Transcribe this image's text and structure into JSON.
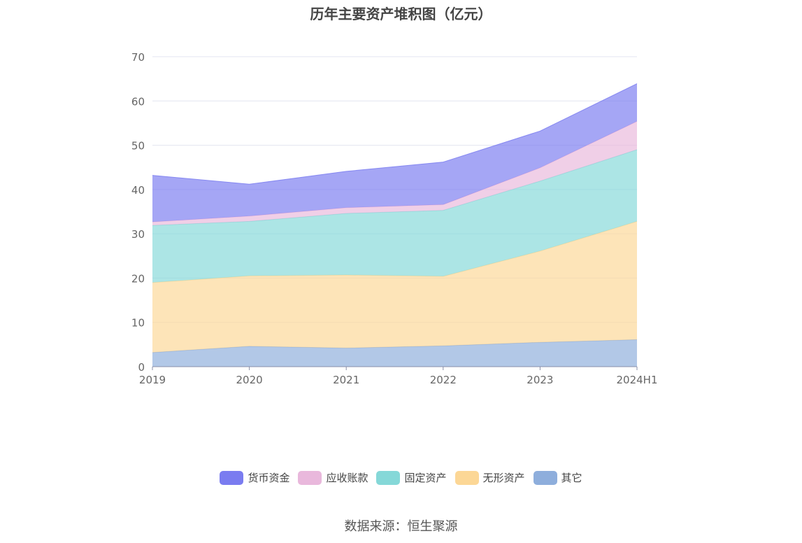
{
  "chart_data": {
    "type": "area",
    "stacked": true,
    "title": "历年主要资产堆积图（亿元）",
    "categories": [
      "2019",
      "2020",
      "2021",
      "2022",
      "2023",
      "2024H1"
    ],
    "ylim": [
      0,
      70
    ],
    "yticks": [
      0,
      10,
      20,
      30,
      40,
      50,
      60,
      70
    ],
    "grid": true,
    "legend_position": "bottom",
    "series": [
      {
        "name": "其它",
        "color": "#8eaedc",
        "values": [
          3.2,
          4.6,
          4.2,
          4.7,
          5.5,
          6.1
        ]
      },
      {
        "name": "无形资产",
        "color": "#fcd796",
        "values": [
          15.8,
          15.9,
          16.5,
          15.7,
          20.6,
          26.7
        ]
      },
      {
        "name": "固定资产",
        "color": "#85d8d8",
        "values": [
          12.9,
          12.3,
          13.9,
          14.9,
          15.8,
          16.2
        ]
      },
      {
        "name": "应收账款",
        "color": "#e9b8dc",
        "values": [
          0.8,
          1.2,
          1.3,
          1.3,
          3.0,
          6.4
        ]
      },
      {
        "name": "货币资金",
        "color": "#7a7cf0",
        "values": [
          10.5,
          7.2,
          8.2,
          9.6,
          8.3,
          8.5
        ]
      }
    ],
    "legend_order": [
      "货币资金",
      "应收账款",
      "固定资产",
      "无形资产",
      "其它"
    ]
  },
  "footer": {
    "source": "数据来源：恒生聚源"
  }
}
